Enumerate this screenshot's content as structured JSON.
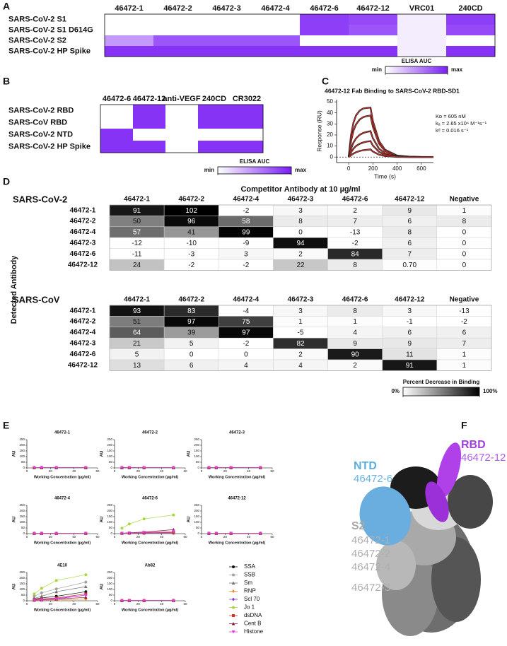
{
  "panel_labels": [
    "A",
    "B",
    "C",
    "D",
    "E",
    "F"
  ],
  "chart_data": [
    {
      "type": "heatmap",
      "columns": [
        "46472-1",
        "46472-2",
        "46472-3",
        "46472-4",
        "46472-6",
        "46472-12",
        "VRC01",
        "240CD"
      ],
      "rows": [
        "SARS-CoV-2 S1",
        "SARS-CoV-2 S1 D614G",
        "SARS-CoV-2 S2",
        "SARS-CoV-2 HP Spike"
      ],
      "values": [
        [
          0,
          0,
          0,
          0,
          0.85,
          0.8,
          0.08,
          0.85
        ],
        [
          0,
          0,
          0,
          0,
          0.85,
          0.75,
          0.08,
          0.8
        ],
        [
          0.45,
          0.75,
          0.75,
          0.75,
          0,
          0,
          0.08,
          0
        ],
        [
          0.9,
          0.9,
          0.9,
          0.9,
          0.9,
          0.9,
          0.08,
          0.9
        ]
      ],
      "colors": [
        "#ffffff",
        "#7a1cf5"
      ],
      "zlim": [
        0,
        1
      ],
      "zticks": [
        {
          "value": 0,
          "label": "min"
        },
        {
          "value": 1,
          "label": "max"
        }
      ],
      "colorbar_title": "ELISA AUC"
    },
    {
      "type": "heatmap",
      "columns": [
        "46472-6",
        "46472-12",
        "anti-VEGF",
        "240CD",
        "CR3022"
      ],
      "rows": [
        "SARS-CoV-2 RBD",
        "SARS-CoV RBD",
        "SARS-CoV-2 NTD",
        "SARS-CoV-2 HP Spike"
      ],
      "values": [
        [
          0,
          0.9,
          0,
          0.9,
          0.9
        ],
        [
          0,
          0.9,
          0,
          0.9,
          0.9
        ],
        [
          0.9,
          0,
          0,
          0,
          0
        ],
        [
          0.9,
          0.9,
          0,
          0.9,
          0.9
        ]
      ],
      "colors": [
        "#ffffff",
        "#7a1cf5"
      ],
      "zlim": [
        0,
        1
      ],
      "zticks": [
        {
          "value": 0,
          "label": "min"
        },
        {
          "value": 1,
          "label": "max"
        }
      ],
      "colorbar_title": "ELISA AUC"
    },
    {
      "type": "line",
      "title": "46472-12 Fab Binding to SARS-CoV-2 RBD-SD1",
      "x_label": "Time (s)",
      "y_label": "Response (RU)",
      "xlim": [
        -100,
        700
      ],
      "xticks": [
        0,
        200,
        400,
        600
      ],
      "ylim": [
        -5,
        52
      ],
      "yticks": [
        0,
        10,
        20,
        30,
        40,
        50
      ],
      "annotations": [
        "Kᴅ = 605 nM",
        "kₐ = 2.65 x10⁴ M⁻¹s⁻¹",
        "kᵈ = 0.016 s⁻¹"
      ],
      "fit_color": "#e0302a",
      "x": [
        0,
        20,
        40,
        60,
        90,
        120,
        150,
        180,
        200,
        250,
        300,
        400,
        500,
        600,
        700
      ],
      "series": [
        {
          "color": "#222222",
          "values": [
            0,
            20.3,
            31.4,
            37.6,
            42,
            44,
            44.5,
            44.8,
            32.5,
            14.6,
            6.6,
            1.3,
            0.3,
            0.1,
            0
          ]
        },
        {
          "color": "#222222",
          "values": [
            0,
            14.9,
            24,
            29.5,
            34,
            36.2,
            37.1,
            37.6,
            27.3,
            12.3,
            5.5,
            1.1,
            0.2,
            0,
            0
          ]
        },
        {
          "color": "#222222",
          "values": [
            0,
            7.9,
            13.2,
            16.8,
            20.1,
            21.8,
            22.8,
            23.4,
            17,
            7.6,
            3.4,
            0.7,
            0.1,
            0,
            0
          ]
        },
        {
          "color": "#222222",
          "values": [
            0,
            4.5,
            7.7,
            9.9,
            12,
            13.2,
            14,
            14.4,
            10.4,
            4.7,
            2.1,
            0.4,
            0.1,
            0,
            0
          ]
        },
        {
          "color": "#222222",
          "values": [
            0,
            1.8,
            3.2,
            4.3,
            5.5,
            6.2,
            6.6,
            6.9,
            5,
            2.2,
            1,
            0.2,
            0,
            0,
            0
          ]
        }
      ]
    },
    {
      "type": "table_heatmap",
      "title": "Competitor Antibody at 10 µg/ml",
      "y_label": "Detected Antibody",
      "colors": [
        "#ffffff",
        "#000000"
      ],
      "zlim": [
        0,
        100
      ],
      "zticks": [
        {
          "value": 0,
          "label": "0%"
        },
        {
          "value": 100,
          "label": "100%"
        }
      ],
      "colorbar_title": "Percent Decrease in Binding",
      "tables": [
        {
          "name": "SARS-CoV-2",
          "columns": [
            "46472-1",
            "46472-2",
            "46472-4",
            "46472-3",
            "46472-6",
            "46472-12",
            "Negative"
          ],
          "rows": [
            "46472-1",
            "46472-2",
            "46472-4",
            "46472-3",
            "46472-6",
            "46472-12"
          ],
          "values": [
            [
              91,
              102,
              -2,
              3,
              2,
              9,
              1
            ],
            [
              50,
              96,
              58,
              8,
              7,
              6,
              8
            ],
            [
              57,
              41,
              99,
              0,
              -13,
              8,
              0
            ],
            [
              -12,
              -10,
              -9,
              94,
              -2,
              6,
              0
            ],
            [
              -11,
              -3,
              3,
              2,
              84,
              7,
              0
            ],
            [
              24,
              -2,
              -2,
              22,
              8,
              {
                "value": 0.7,
                "label": "0.70"
              },
              0
            ]
          ]
        },
        {
          "name": "SARS-CoV",
          "columns": [
            "46472-1",
            "46472-2",
            "46472-4",
            "46472-3",
            "46472-6",
            "46472-12",
            "Negative"
          ],
          "rows": [
            "46472-1",
            "46472-2",
            "46472-4",
            "46472-3",
            "46472-6",
            "46472-12"
          ],
          "values": [
            [
              93,
              83,
              -4,
              3,
              8,
              3,
              -13
            ],
            [
              51,
              97,
              75,
              1,
              1,
              -1,
              -2
            ],
            [
              64,
              39,
              97,
              -5,
              4,
              6,
              6
            ],
            [
              21,
              5,
              -2,
              82,
              9,
              9,
              7
            ],
            [
              5,
              0,
              0,
              2,
              90,
              11,
              1
            ],
            [
              13,
              6,
              4,
              4,
              2,
              91,
              1
            ]
          ]
        }
      ]
    },
    {
      "type": "multiples",
      "x_label": "Working Concentration (µg/ml)",
      "y_label": "AU",
      "xlim": [
        0,
        60
      ],
      "xticks": [
        0,
        20,
        40,
        60
      ],
      "ylim": [
        0,
        250
      ],
      "yticks": [
        0,
        50,
        100,
        150,
        200,
        250
      ],
      "x": [
        6.25,
        12.5,
        25,
        50
      ],
      "series": [
        {
          "name": "SSA",
          "color": "#111111",
          "marker": "circle"
        },
        {
          "name": "SSB",
          "color": "#a0a0a0",
          "marker": "circle"
        },
        {
          "name": "Sm",
          "color": "#707070",
          "marker": "triangle"
        },
        {
          "name": "RNP",
          "color": "#f08a24",
          "marker": "diamond"
        },
        {
          "name": "Scl 70",
          "color": "#7b3fc4",
          "marker": "diamond"
        },
        {
          "name": "Jo 1",
          "color": "#a6d83c",
          "marker": "circle"
        },
        {
          "name": "dsDNA",
          "color": "#d0312d",
          "marker": "square"
        },
        {
          "name": "Cent B",
          "color": "#8b1a3a",
          "marker": "triangle"
        },
        {
          "name": "Histone",
          "color": "#e040e0",
          "marker": "triangle-down"
        }
      ],
      "charts": [
        {
          "title": "46472-1",
          "values": [
            [
              2,
              2,
              2,
              2
            ],
            [
              2,
              2,
              2,
              2
            ],
            [
              2,
              2,
              2,
              2
            ],
            [
              2,
              2,
              2,
              2
            ],
            [
              2,
              2,
              2,
              2
            ],
            [
              2,
              2,
              2,
              2
            ],
            [
              2,
              2,
              2,
              2
            ],
            [
              2,
              2,
              2,
              2
            ],
            [
              2,
              2,
              2,
              2
            ]
          ]
        },
        {
          "title": "46472-2",
          "values": [
            [
              2,
              2,
              2,
              2
            ],
            [
              2,
              2,
              2,
              2
            ],
            [
              2,
              2,
              2,
              2
            ],
            [
              2,
              2,
              2,
              2
            ],
            [
              2,
              2,
              2,
              2
            ],
            [
              2,
              2,
              2,
              2
            ],
            [
              2,
              2,
              2,
              2
            ],
            [
              2,
              2,
              2,
              2
            ],
            [
              2,
              2,
              2,
              2
            ]
          ]
        },
        {
          "title": "46472-3",
          "values": [
            [
              2,
              2,
              2,
              2
            ],
            [
              2,
              2,
              2,
              2
            ],
            [
              2,
              2,
              2,
              2
            ],
            [
              2,
              2,
              2,
              2
            ],
            [
              2,
              2,
              2,
              2
            ],
            [
              2,
              2,
              2,
              2
            ],
            [
              2,
              2,
              2,
              2
            ],
            [
              2,
              2,
              2,
              2
            ],
            [
              2,
              2,
              2,
              2
            ]
          ]
        },
        {
          "title": "46472-4",
          "values": [
            [
              2,
              2,
              2,
              2
            ],
            [
              2,
              2,
              2,
              2
            ],
            [
              2,
              2,
              2,
              2
            ],
            [
              2,
              2,
              2,
              2
            ],
            [
              2,
              2,
              2,
              2
            ],
            [
              2,
              2,
              2,
              2
            ],
            [
              2,
              2,
              2,
              2
            ],
            [
              2,
              2,
              2,
              2
            ],
            [
              2,
              2,
              2,
              2
            ]
          ]
        },
        {
          "title": "46472-6",
          "values": [
            [
              3,
              4,
              5,
              6
            ],
            [
              3,
              4,
              5,
              6
            ],
            [
              2,
              3,
              4,
              5
            ],
            [
              2,
              2,
              3,
              4
            ],
            [
              2,
              3,
              4,
              6
            ],
            [
              48,
              85,
              130,
              165
            ],
            [
              3,
              5,
              8,
              12
            ],
            [
              4,
              8,
              14,
              35
            ],
            [
              3,
              6,
              10,
              20
            ]
          ]
        },
        {
          "title": "46472-12",
          "values": [
            [
              2,
              2,
              2,
              2
            ],
            [
              2,
              2,
              2,
              2
            ],
            [
              2,
              2,
              2,
              2
            ],
            [
              2,
              2,
              2,
              2
            ],
            [
              2,
              2,
              2,
              2
            ],
            [
              2,
              2,
              2,
              2
            ],
            [
              2,
              2,
              2,
              2
            ],
            [
              2,
              2,
              2,
              2
            ],
            [
              2,
              2,
              2,
              2
            ]
          ]
        },
        {
          "title": "4E10",
          "values": [
            [
              15,
              25,
              40,
              80
            ],
            [
              40,
              70,
              105,
              165
            ],
            [
              20,
              40,
              80,
              125
            ],
            [
              3,
              5,
              8,
              15
            ],
            [
              8,
              12,
              20,
              50
            ],
            [
              60,
              110,
              180,
              230
            ],
            [
              10,
              15,
              25,
              60
            ],
            [
              5,
              8,
              15,
              30
            ],
            [
              5,
              8,
              15,
              50
            ]
          ]
        },
        {
          "title": "Ab82",
          "values": [
            [
              2,
              2,
              2,
              2
            ],
            [
              2,
              2,
              2,
              2
            ],
            [
              2,
              2,
              2,
              2
            ],
            [
              2,
              2,
              2,
              2
            ],
            [
              2,
              2,
              2,
              2
            ],
            [
              2,
              2,
              2,
              2
            ],
            [
              2,
              2,
              2,
              2
            ],
            [
              2,
              2,
              2,
              2
            ],
            [
              2,
              2,
              2,
              2
            ]
          ]
        }
      ]
    }
  ],
  "structure_labels": {
    "rbd": "RBD",
    "rbd_antibody": "46472-12",
    "ntd": "NTD",
    "ntd_antibody": "46472-6",
    "s2": "S2",
    "s2_antibodies": [
      "46472-1",
      "46472-2",
      "46472-4",
      "46472-3"
    ]
  }
}
